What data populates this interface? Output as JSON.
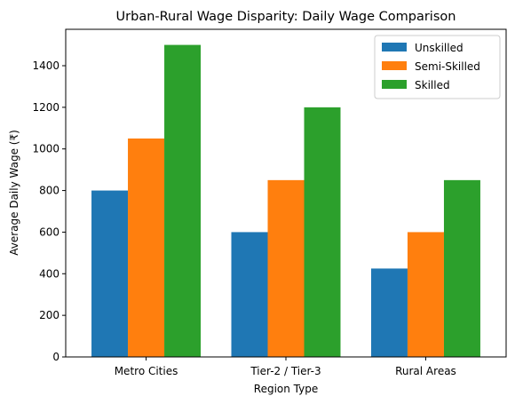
{
  "chart_data": {
    "type": "bar",
    "title": "Urban-Rural Wage Disparity: Daily Wage Comparison",
    "xlabel": "Region Type",
    "ylabel": "Average Daily Wage (₹)",
    "categories": [
      "Metro Cities",
      "Tier-2 / Tier-3",
      "Rural Areas"
    ],
    "series": [
      {
        "name": "Unskilled",
        "values": [
          800,
          600,
          425
        ],
        "color": "#1f77b4"
      },
      {
        "name": "Semi-Skilled",
        "values": [
          1050,
          850,
          600
        ],
        "color": "#ff7f0e"
      },
      {
        "name": "Skilled",
        "values": [
          1500,
          1200,
          850
        ],
        "color": "#2ca02c"
      }
    ],
    "ylim": [
      0,
      1575
    ],
    "yticks": [
      0,
      200,
      400,
      600,
      800,
      1000,
      1200,
      1400
    ],
    "grid": false,
    "legend_position": "top-right"
  }
}
